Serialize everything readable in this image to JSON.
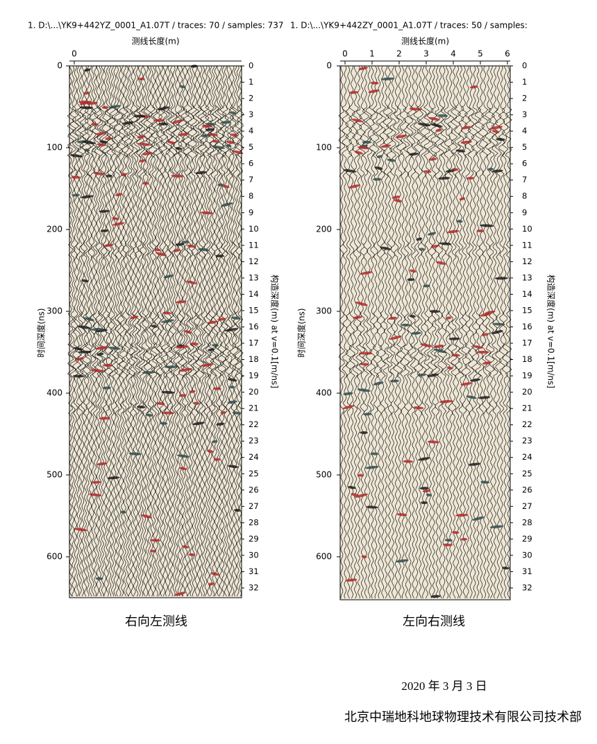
{
  "panels": [
    {
      "header": "1. D:\\...\\YK9+442YZ_0001_A1.07T  / traces: 70 / samples: 737",
      "x_label": "测线长度(m)",
      "xticks": [
        0
      ],
      "y_label": "时间深度(ns)",
      "yticks": [
        0,
        100,
        200,
        300,
        400,
        500,
        600
      ],
      "y2_label": "构造深度(m) at v=0.1[m/ns]",
      "y2ticks": [
        0,
        1,
        2,
        3,
        4,
        5,
        6,
        7,
        8,
        9,
        10,
        11,
        12,
        13,
        14,
        15,
        16,
        17,
        18,
        19,
        20,
        21,
        22,
        23,
        24,
        25,
        26,
        27,
        28,
        29,
        30,
        31,
        32
      ],
      "caption": "右向左测线"
    },
    {
      "header": "1. D:\\...\\YK9+442ZY_0001_A1.07T  / traces: 50 / samples:",
      "x_label": "测线长度(m)",
      "xticks": [
        0,
        1,
        2,
        3,
        4,
        5,
        6
      ],
      "y_label": "时间深度(ns)",
      "yticks": [
        0,
        100,
        200,
        300,
        400,
        500,
        600
      ],
      "y2_label": "构造深度(m) at v=0.1[m/ns]",
      "y2ticks": [
        0,
        1,
        2,
        3,
        4,
        5,
        6,
        7,
        8,
        9,
        10,
        11,
        12,
        13,
        14,
        15,
        16,
        17,
        18,
        19,
        20,
        21,
        22,
        23,
        24,
        25,
        26,
        27,
        28,
        29,
        30,
        31,
        32
      ],
      "caption": "左向右测线"
    }
  ],
  "footer": {
    "date": "2020 年 3 月 3 日",
    "organization": "北京中瑞地科地球物理技术有限公司技术部"
  }
}
